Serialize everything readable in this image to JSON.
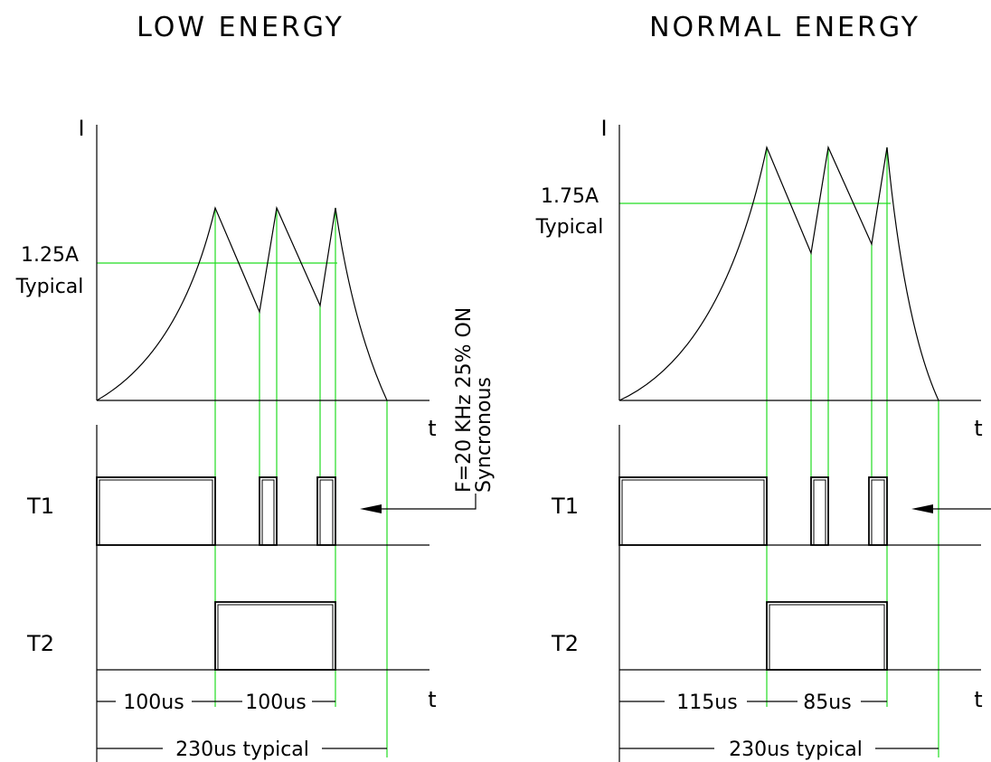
{
  "panels": [
    {
      "title": "LOW ENERGY",
      "current_axis_label": "I",
      "time_axis_label": "t",
      "level_value": "1.25A",
      "level_note": "Typical",
      "t1_label": "T1",
      "t2_label": "T2",
      "interval_1": "100us",
      "interval_2": "100us",
      "total_time": "230us typical"
    },
    {
      "title": "NORMAL ENERGY",
      "current_axis_label": "I",
      "time_axis_label": "t",
      "level_value": "1.75A",
      "level_note": "Typical",
      "t1_label": "T1",
      "t2_label": "T2",
      "interval_1": "115us",
      "interval_2": "85us",
      "total_time": "230us typical"
    }
  ],
  "chopper_note": {
    "line1": "F=20 KHz 25% ON",
    "line2": "Syncronous"
  },
  "colors": {
    "lines": "#000000",
    "guides": "#22dd22",
    "background": "#ffffff"
  }
}
